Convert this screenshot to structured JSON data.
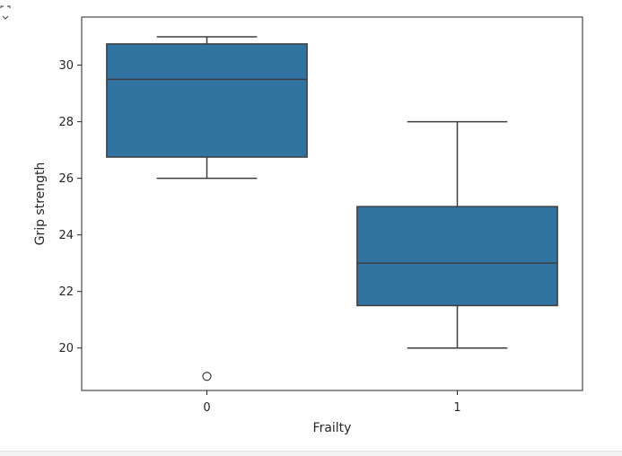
{
  "output_icon": "output-collapse-icon",
  "chart_data": {
    "type": "box",
    "xlabel": "Frailty",
    "ylabel": "Grip strength",
    "categories": [
      "0",
      "1"
    ],
    "ylim": [
      18.5,
      31.7
    ],
    "yticks": [
      "20",
      "22",
      "24",
      "26",
      "28",
      "30"
    ],
    "box_color": "#3274a1",
    "edge_color": "#3d3d3d",
    "grid": false,
    "boxes": [
      {
        "category": "0",
        "whisker_low": 26,
        "q1": 26.75,
        "median": 29.5,
        "q3": 30.75,
        "whisker_high": 31,
        "outliers": [
          19
        ]
      },
      {
        "category": "1",
        "whisker_low": 20,
        "q1": 21.5,
        "median": 23,
        "q3": 25,
        "whisker_high": 28,
        "outliers": []
      }
    ]
  }
}
